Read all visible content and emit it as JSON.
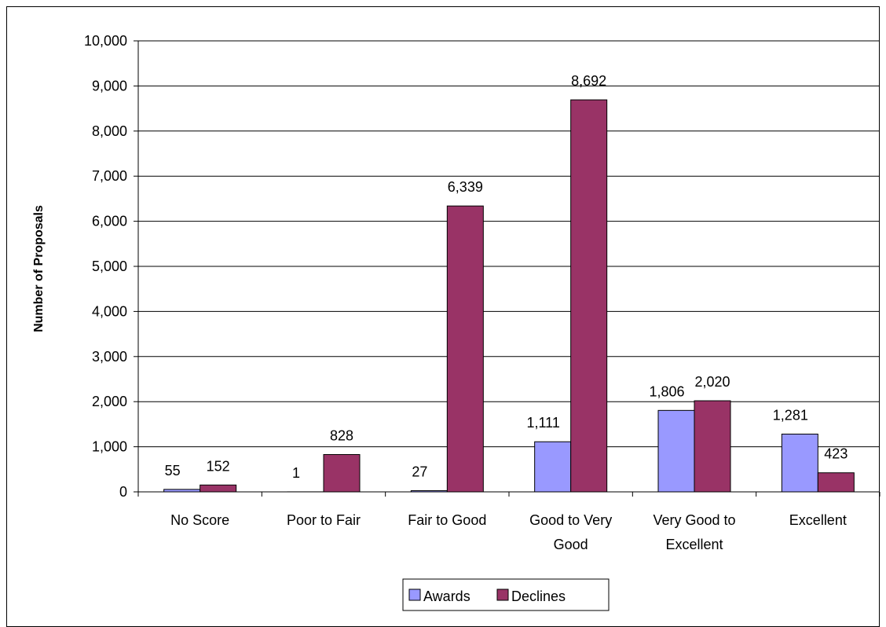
{
  "chart_data": {
    "type": "bar",
    "ylabel": "Number of Proposals",
    "ylim": [
      0,
      10000
    ],
    "y_tick_step": 1000,
    "y_tick_labels": [
      "0",
      "1,000",
      "2,000",
      "3,000",
      "4,000",
      "5,000",
      "6,000",
      "7,000",
      "8,000",
      "9,000",
      "10,000"
    ],
    "categories": [
      [
        "No Score"
      ],
      [
        "Poor to Fair"
      ],
      [
        "Fair to Good"
      ],
      [
        "Good to Very",
        "Good"
      ],
      [
        "Very Good to",
        "Excellent"
      ],
      [
        "Excellent"
      ]
    ],
    "series": [
      {
        "name": "Awards",
        "color": "#9999ff",
        "values": [
          55,
          1,
          27,
          1111,
          1806,
          1281
        ],
        "labels": [
          "55",
          "1",
          "27",
          "1,111",
          "1,806",
          "1,281"
        ]
      },
      {
        "name": "Declines",
        "color": "#993366",
        "values": [
          152,
          828,
          6339,
          8692,
          2020,
          423
        ],
        "labels": [
          "152",
          "828",
          "6,339",
          "8,692",
          "2,020",
          "423"
        ]
      }
    ],
    "grid": true,
    "legend_position": "bottom"
  }
}
